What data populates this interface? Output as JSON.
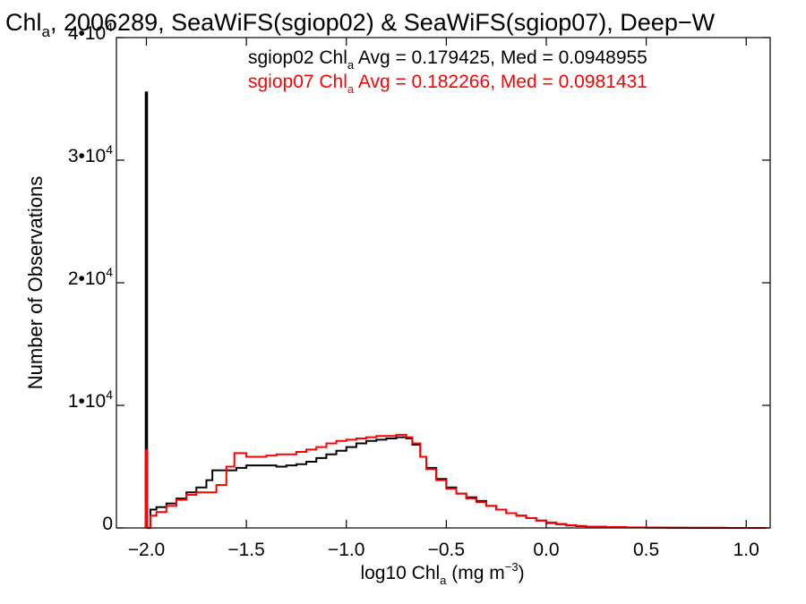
{
  "chart_data": {
    "type": "line",
    "title": {
      "prefix": "Chl",
      "sub": "a",
      "rest": ", 2006289, SeaWiFS(sgiop02) & SeaWiFS(sgiop07), Deep−W"
    },
    "xlabel": {
      "prefix": "log10 Chl",
      "sub": "a",
      "mid": " (mg m",
      "sup": "−3",
      "end": ")"
    },
    "ylabel": "Number of Observations",
    "xlim": [
      -2.15,
      1.12
    ],
    "ylim": [
      0,
      40000
    ],
    "xticks": [
      {
        "value": -2.0,
        "label": "−2.0"
      },
      {
        "value": -1.5,
        "label": "−1.5"
      },
      {
        "value": -1.0,
        "label": "−1.0"
      },
      {
        "value": -0.5,
        "label": "−0.5"
      },
      {
        "value": 0.0,
        "label": "0.0"
      },
      {
        "value": 0.5,
        "label": "0.5"
      },
      {
        "value": 1.0,
        "label": "1.0"
      }
    ],
    "yticks": [
      {
        "value": 0,
        "label": "0",
        "exp": ""
      },
      {
        "value": 10000,
        "label": "1•10",
        "exp": "4"
      },
      {
        "value": 20000,
        "label": "2•10",
        "exp": "4"
      },
      {
        "value": 30000,
        "label": "3•10",
        "exp": "4"
      },
      {
        "value": 40000,
        "label": "4•10",
        "exp": "4"
      }
    ],
    "legend": {
      "placement": "top-right",
      "entries": [
        {
          "prefix": "sgiop02 Chl",
          "sub": "a",
          "rest": " Avg = 0.179425, Med = 0.0948955",
          "color": "#000000"
        },
        {
          "prefix": "sgiop07 Chl",
          "sub": "a",
          "rest": " Avg = 0.182266, Med = 0.0981431",
          "color": "#ff0000"
        }
      ]
    },
    "series": [
      {
        "color": "#000000",
        "spike": {
          "x": -2.0,
          "y": 35600
        },
        "x": [
          -2.0,
          -1.98,
          -1.95,
          -1.9,
          -1.85,
          -1.8,
          -1.75,
          -1.7,
          -1.67,
          -1.6,
          -1.55,
          -1.5,
          -1.45,
          -1.4,
          -1.35,
          -1.3,
          -1.25,
          -1.2,
          -1.15,
          -1.1,
          -1.05,
          -1.0,
          -0.95,
          -0.9,
          -0.85,
          -0.8,
          -0.75,
          -0.7,
          -0.67,
          -0.63,
          -0.6,
          -0.55,
          -0.5,
          -0.45,
          -0.4,
          -0.35,
          -0.3,
          -0.25,
          -0.2,
          -0.15,
          -0.1,
          -0.05,
          0.0,
          0.05,
          0.1,
          0.15,
          0.2,
          0.3,
          0.4,
          0.5,
          0.6,
          0.7,
          0.8,
          0.9,
          1.0,
          1.1
        ],
        "y": [
          0,
          1500,
          1700,
          2000,
          2400,
          2900,
          3300,
          3900,
          4700,
          4700,
          4900,
          5100,
          5100,
          5100,
          5000,
          5100,
          5200,
          5400,
          5700,
          6000,
          6300,
          6600,
          6900,
          7100,
          7200,
          7300,
          7400,
          7300,
          6800,
          5800,
          4900,
          4000,
          3300,
          2800,
          2500,
          2200,
          1800,
          1500,
          1200,
          1000,
          800,
          600,
          400,
          300,
          200,
          150,
          100,
          60,
          40,
          25,
          15,
          10,
          5,
          3,
          2,
          0
        ]
      },
      {
        "color": "#ff0000",
        "spike": {
          "x": -2.0,
          "y": 6400
        },
        "x": [
          -2.0,
          -1.98,
          -1.95,
          -1.9,
          -1.85,
          -1.8,
          -1.75,
          -1.7,
          -1.65,
          -1.6,
          -1.56,
          -1.5,
          -1.45,
          -1.4,
          -1.35,
          -1.3,
          -1.25,
          -1.2,
          -1.15,
          -1.1,
          -1.05,
          -1.0,
          -0.95,
          -0.9,
          -0.85,
          -0.8,
          -0.75,
          -0.7,
          -0.67,
          -0.63,
          -0.6,
          -0.55,
          -0.5,
          -0.45,
          -0.4,
          -0.35,
          -0.3,
          -0.25,
          -0.2,
          -0.15,
          -0.1,
          -0.05,
          0.0,
          0.05,
          0.1,
          0.15,
          0.2,
          0.3,
          0.4,
          0.5,
          0.6,
          0.7,
          0.8,
          0.9,
          1.0,
          1.1
        ],
        "y": [
          0,
          1000,
          1300,
          1800,
          2300,
          2700,
          2900,
          2900,
          3500,
          5000,
          6100,
          5800,
          5800,
          5900,
          6000,
          6000,
          6200,
          6400,
          6600,
          6900,
          7100,
          7200,
          7300,
          7400,
          7500,
          7500,
          7600,
          7400,
          6900,
          5800,
          4800,
          3900,
          3200,
          2800,
          2400,
          2100,
          1800,
          1500,
          1200,
          1000,
          800,
          600,
          450,
          330,
          230,
          160,
          110,
          70,
          45,
          30,
          18,
          12,
          7,
          4,
          2,
          0
        ]
      }
    ]
  }
}
